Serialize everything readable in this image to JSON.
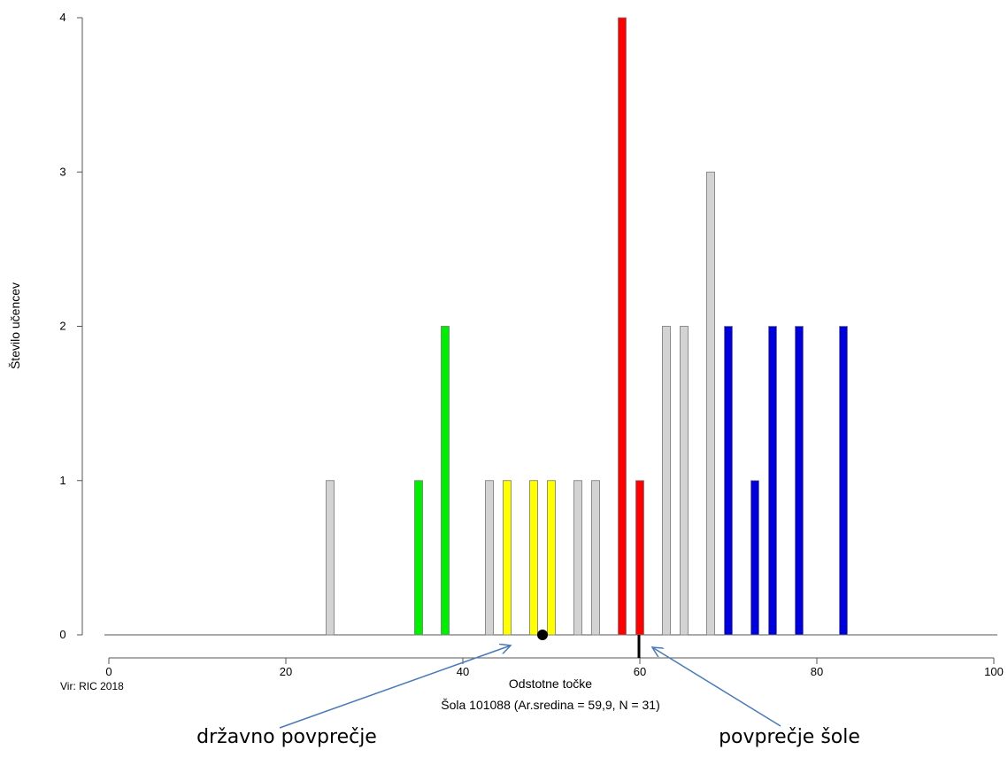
{
  "chart_data": {
    "type": "bar",
    "title": "",
    "subtitle": "Šola 101088 (Ar.sredina = 59,9, N = 31)",
    "xlabel": "Odstotne točke",
    "ylabel": "Število učencev",
    "xlim": [
      0,
      100
    ],
    "ylim": [
      0,
      4
    ],
    "x_ticks": [
      0,
      20,
      40,
      60,
      80,
      100
    ],
    "y_ticks": [
      0,
      1,
      2,
      3,
      4
    ],
    "grid": false,
    "source": "Vir: RIC 2018",
    "colors": {
      "grey": "#d3d3d3",
      "green": "#00ee00",
      "yellow": "#ffff00",
      "red": "#ff0000",
      "blue": "#0000dd"
    },
    "bars": [
      {
        "x": 25,
        "value": 1,
        "color": "grey"
      },
      {
        "x": 35,
        "value": 1,
        "color": "green"
      },
      {
        "x": 38,
        "value": 2,
        "color": "green"
      },
      {
        "x": 43,
        "value": 1,
        "color": "grey"
      },
      {
        "x": 45,
        "value": 1,
        "color": "yellow"
      },
      {
        "x": 48,
        "value": 1,
        "color": "yellow"
      },
      {
        "x": 50,
        "value": 1,
        "color": "yellow"
      },
      {
        "x": 53,
        "value": 1,
        "color": "grey"
      },
      {
        "x": 55,
        "value": 1,
        "color": "grey"
      },
      {
        "x": 58,
        "value": 4,
        "color": "red"
      },
      {
        "x": 60,
        "value": 1,
        "color": "red"
      },
      {
        "x": 63,
        "value": 2,
        "color": "grey"
      },
      {
        "x": 65,
        "value": 2,
        "color": "grey"
      },
      {
        "x": 68,
        "value": 3,
        "color": "grey"
      },
      {
        "x": 70,
        "value": 2,
        "color": "blue"
      },
      {
        "x": 73,
        "value": 1,
        "color": "blue"
      },
      {
        "x": 75,
        "value": 2,
        "color": "blue"
      },
      {
        "x": 78,
        "value": 2,
        "color": "blue"
      },
      {
        "x": 83,
        "value": 2,
        "color": "blue"
      }
    ],
    "national_average": 49,
    "school_average": 59.9,
    "annotations": [
      {
        "text": "državno povprečje",
        "target": "national_average"
      },
      {
        "text": "povprečje šole",
        "target": "school_average"
      }
    ]
  }
}
